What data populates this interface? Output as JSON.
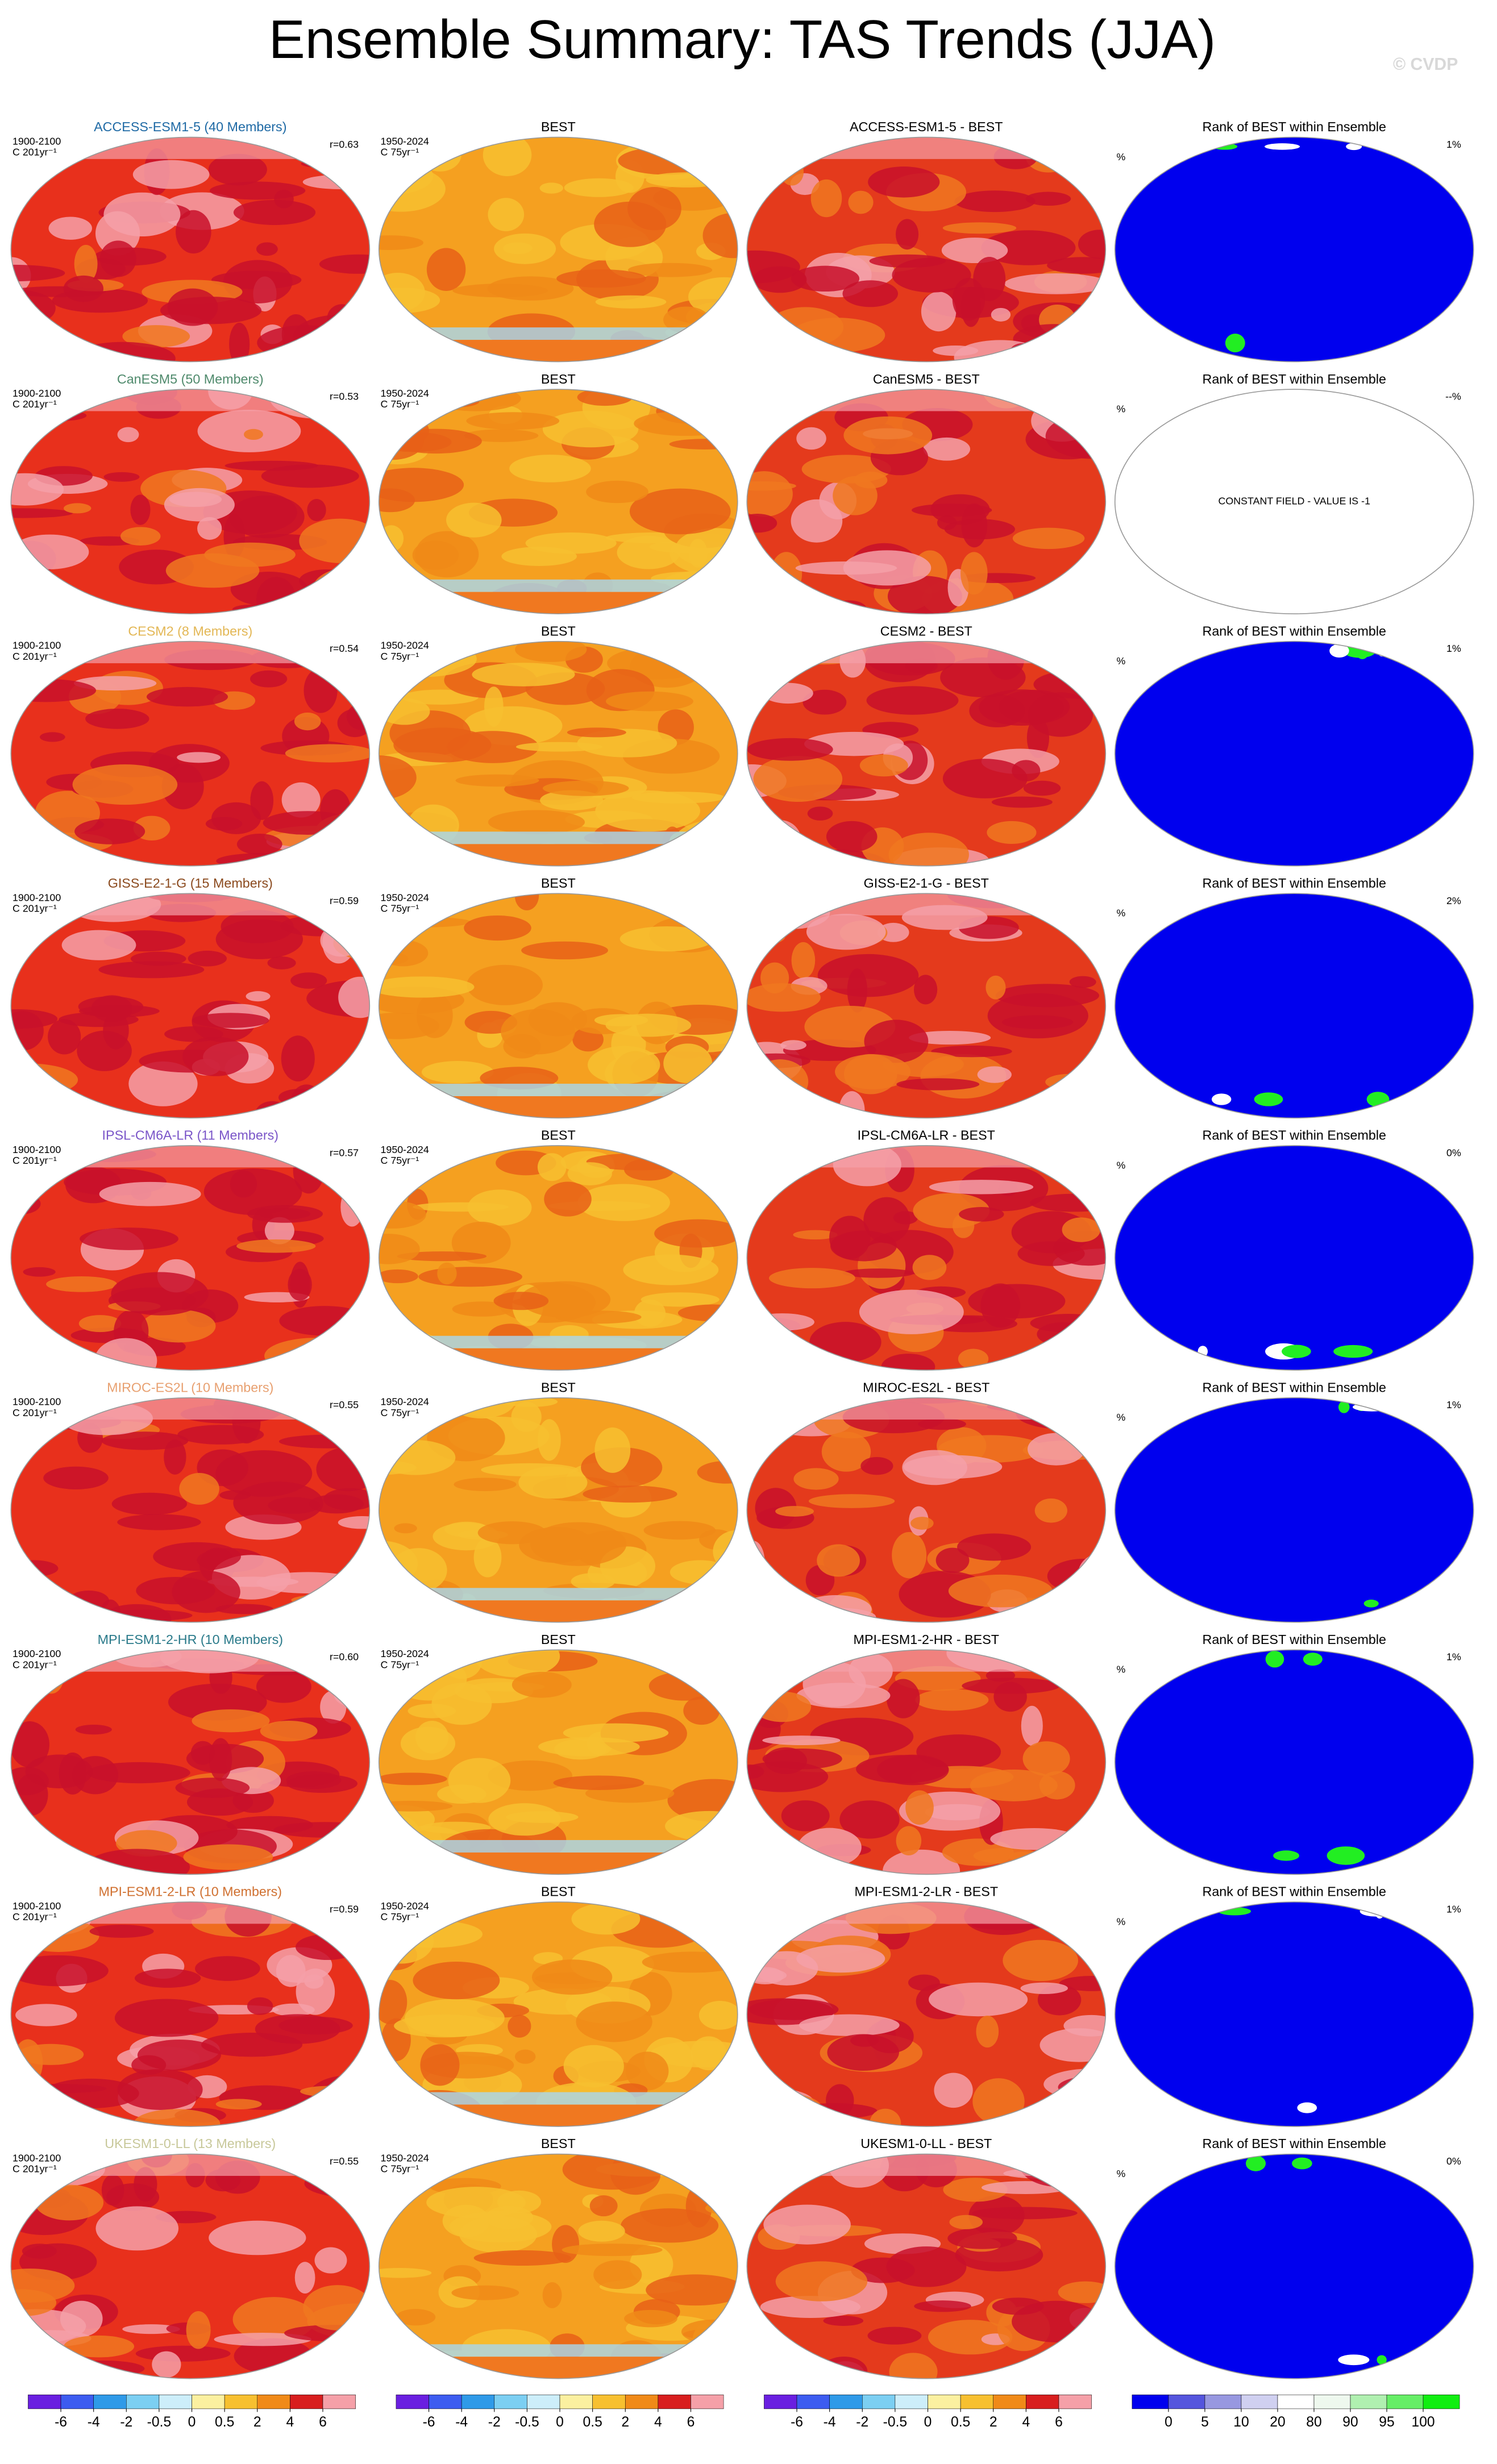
{
  "title": "Ensemble Summary: TAS Trends (JJA)",
  "watermark": "© CVDP",
  "rows": [
    {
      "model": "ACCESS-ESM1-5 (40 Members)",
      "color": "#1f6aa5",
      "model_period": "1900-2100",
      "model_units": "C 201yr⁻¹",
      "correlation": "r=0.63",
      "obs_title": "BEST",
      "obs_period": "1950-2024",
      "obs_units": "C 75yr⁻¹",
      "diff_title": "ACCESS-ESM1-5 - BEST",
      "rank_title": "Rank of BEST within Ensemble",
      "rank_units": "%",
      "rank_value": "1%"
    },
    {
      "model": "CanESM5 (50 Members)",
      "color": "#4f8a6c",
      "model_period": "1900-2100",
      "model_units": "C 201yr⁻¹",
      "correlation": "r=0.53",
      "obs_title": "BEST",
      "obs_period": "1950-2024",
      "obs_units": "C 75yr⁻¹",
      "diff_title": "CanESM5 - BEST",
      "rank_title": "Rank of BEST within Ensemble",
      "rank_units": "%",
      "rank_value": "--%",
      "rank_note": "CONSTANT FIELD - VALUE IS -1"
    },
    {
      "model": "CESM2 (8 Members)",
      "color": "#e3b755",
      "model_period": "1900-2100",
      "model_units": "C 201yr⁻¹",
      "correlation": "r=0.54",
      "obs_title": "BEST",
      "obs_period": "1950-2024",
      "obs_units": "C 75yr⁻¹",
      "diff_title": "CESM2 - BEST",
      "rank_title": "Rank of BEST within Ensemble",
      "rank_units": "%",
      "rank_value": "1%"
    },
    {
      "model": "GISS-E2-1-G (15 Members)",
      "color": "#8b4a1e",
      "model_period": "1900-2100",
      "model_units": "C 201yr⁻¹",
      "correlation": "r=0.59",
      "obs_title": "BEST",
      "obs_period": "1950-2024",
      "obs_units": "C 75yr⁻¹",
      "diff_title": "GISS-E2-1-G - BEST",
      "rank_title": "Rank of BEST within Ensemble",
      "rank_units": "%",
      "rank_value": "2%"
    },
    {
      "model": "IPSL-CM6A-LR (11 Members)",
      "color": "#7a55c8",
      "model_period": "1900-2100",
      "model_units": "C 201yr⁻¹",
      "correlation": "r=0.57",
      "obs_title": "BEST",
      "obs_period": "1950-2024",
      "obs_units": "C 75yr⁻¹",
      "diff_title": "IPSL-CM6A-LR - BEST",
      "rank_title": "Rank of BEST within Ensemble",
      "rank_units": "%",
      "rank_value": "0%"
    },
    {
      "model": "MIROC-ES2L (10 Members)",
      "color": "#e8a070",
      "model_period": "1900-2100",
      "model_units": "C 201yr⁻¹",
      "correlation": "r=0.55",
      "obs_title": "BEST",
      "obs_period": "1950-2024",
      "obs_units": "C 75yr⁻¹",
      "diff_title": "MIROC-ES2L - BEST",
      "rank_title": "Rank of BEST within Ensemble",
      "rank_units": "%",
      "rank_value": "1%"
    },
    {
      "model": "MPI-ESM1-2-HR (10 Members)",
      "color": "#2a7a8a",
      "model_period": "1900-2100",
      "model_units": "C 201yr⁻¹",
      "correlation": "r=0.60",
      "obs_title": "BEST",
      "obs_period": "1950-2024",
      "obs_units": "C 75yr⁻¹",
      "diff_title": "MPI-ESM1-2-HR - BEST",
      "rank_title": "Rank of BEST within Ensemble",
      "rank_units": "%",
      "rank_value": "1%"
    },
    {
      "model": "MPI-ESM1-2-LR (10 Members)",
      "color": "#d07030",
      "model_period": "1900-2100",
      "model_units": "C 201yr⁻¹",
      "correlation": "r=0.59",
      "obs_title": "BEST",
      "obs_period": "1950-2024",
      "obs_units": "C 75yr⁻¹",
      "diff_title": "MPI-ESM1-2-LR - BEST",
      "rank_title": "Rank of BEST within Ensemble",
      "rank_units": "%",
      "rank_value": "1%"
    },
    {
      "model": "UKESM1-0-LL (13 Members)",
      "color": "#c8c89a",
      "model_period": "1900-2100",
      "model_units": "C 201yr⁻¹",
      "correlation": "r=0.55",
      "obs_title": "BEST",
      "obs_period": "1950-2024",
      "obs_units": "C 75yr⁻¹",
      "diff_title": "UKESM1-0-LL - BEST",
      "rank_title": "Rank of BEST within Ensemble",
      "rank_units": "%",
      "rank_value": "0%"
    }
  ],
  "colorbars": {
    "trend_ticks": [
      -6,
      -4,
      -2,
      -0.5,
      0,
      0.5,
      2,
      4,
      6
    ],
    "rank_ticks": [
      0,
      5,
      10,
      20,
      80,
      90,
      95,
      100
    ]
  }
}
